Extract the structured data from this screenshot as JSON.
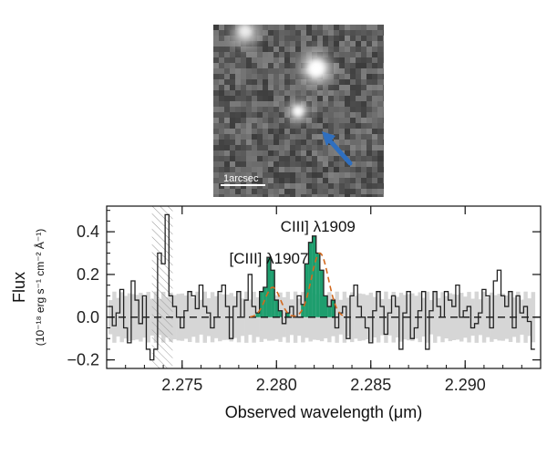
{
  "image_panel": {
    "scale_bar_label": "1arcsec",
    "arrow_color": "#2f6fbf"
  },
  "chart_data": {
    "type": "line",
    "title": "",
    "xlabel": "Observed wavelength (μm)",
    "ylabel": "Flux",
    "ylabel_units": "(10⁻¹⁸ erg s⁻¹ cm⁻² Å⁻¹)",
    "xlim": [
      2.271,
      2.294
    ],
    "ylim": [
      -0.24,
      0.52
    ],
    "x_ticks": [
      "2.275",
      "2.280",
      "2.285",
      "2.290"
    ],
    "x_tick_values": [
      2.275,
      2.28,
      2.285,
      2.29
    ],
    "y_ticks": [
      "−0.2",
      "0.0",
      "0.2",
      "0.4"
    ],
    "y_tick_values": [
      -0.2,
      0.0,
      0.2,
      0.4
    ],
    "zero_line": "dashed",
    "noise_band_sigma": 0.1,
    "masked_region": [
      2.2734,
      2.2745
    ],
    "annotations": [
      {
        "text": "[CIII] λ1907",
        "x": 2.2796,
        "y": 0.25
      },
      {
        "text": "CIII] λ1909",
        "x": 2.2822,
        "y": 0.4
      }
    ],
    "series": [
      {
        "name": "spectrum",
        "style": "step",
        "color": "#222222",
        "fill_color": "#1e9e6e",
        "x": [
          2.2712,
          2.2714,
          2.2716,
          2.2718,
          2.272,
          2.2722,
          2.2724,
          2.2726,
          2.2728,
          2.273,
          2.2732,
          2.2734,
          2.2736,
          2.2738,
          2.274,
          2.2742,
          2.2744,
          2.2746,
          2.2748,
          2.275,
          2.2752,
          2.2754,
          2.2756,
          2.2758,
          2.276,
          2.2762,
          2.2764,
          2.2766,
          2.2768,
          2.277,
          2.2772,
          2.2774,
          2.2776,
          2.2778,
          2.278,
          2.2782,
          2.2784,
          2.2786,
          2.2788,
          2.279,
          2.2792,
          2.2794,
          2.2796,
          2.2798,
          2.28,
          2.2802,
          2.2804,
          2.2806,
          2.2808,
          2.281,
          2.2812,
          2.2814,
          2.2816,
          2.2818,
          2.282,
          2.2822,
          2.2824,
          2.2826,
          2.2828,
          2.283,
          2.2832,
          2.2834,
          2.2836,
          2.2838,
          2.284,
          2.2842,
          2.2844,
          2.2846,
          2.2848,
          2.285,
          2.2852,
          2.2854,
          2.2856,
          2.2858,
          2.286,
          2.2862,
          2.2864,
          2.2866,
          2.2868,
          2.287,
          2.2872,
          2.2874,
          2.2876,
          2.2878,
          2.288,
          2.2882,
          2.2884,
          2.2886,
          2.2888,
          2.289,
          2.2892,
          2.2894,
          2.2896,
          2.2898,
          2.29,
          2.2902,
          2.2904,
          2.2906,
          2.2908,
          2.291,
          2.2912,
          2.2914,
          2.2916,
          2.2918,
          2.292,
          2.2922,
          2.2924,
          2.2926,
          2.2928,
          2.293,
          2.2932,
          2.2934,
          2.2936
        ],
        "y": [
          0.05,
          -0.04,
          0.02,
          0.13,
          -0.05,
          -0.12,
          0.17,
          0.08,
          -0.03,
          0.1,
          -0.15,
          -0.2,
          -0.15,
          0.3,
          0.25,
          0.48,
          0.1,
          0.05,
          0.0,
          -0.05,
          0.03,
          0.12,
          0.1,
          0.04,
          0.15,
          0.05,
          0.02,
          -0.05,
          0.0,
          0.12,
          0.15,
          0.05,
          -0.1,
          0.05,
          0.12,
          0.0,
          0.08,
          0.2,
          0.05,
          0.02,
          0.12,
          0.14,
          0.28,
          0.22,
          0.08,
          0.03,
          -0.03,
          0.02,
          0.05,
          0.0,
          0.1,
          0.06,
          0.25,
          0.35,
          0.38,
          0.3,
          0.22,
          0.1,
          0.05,
          0.08,
          -0.05,
          0.02,
          0.05,
          -0.1,
          0.1,
          0.15,
          0.05,
          0.0,
          -0.05,
          -0.12,
          0.03,
          0.12,
          0.05,
          -0.08,
          0.02,
          0.1,
          0.05,
          -0.15,
          0.02,
          0.12,
          -0.1,
          -0.05,
          0.03,
          0.12,
          -0.15,
          0.03,
          0.12,
          0.05,
          0.0,
          0.12,
          0.08,
          0.05,
          0.15,
          0.0,
          0.03,
          0.05,
          -0.05,
          -0.03,
          0.02,
          0.13,
          0.1,
          -0.05,
          0.17,
          0.22,
          0.1,
          0.05,
          0.12,
          -0.05,
          0.1,
          0.02,
          0.05,
          -0.02,
          -0.15
        ]
      },
      {
        "name": "fit",
        "style": "dashed",
        "color": "#d2691e",
        "components": [
          {
            "center": 2.2798,
            "amplitude": 0.14,
            "sigma": 0.0004
          },
          {
            "center": 2.2823,
            "amplitude": 0.3,
            "sigma": 0.00045
          }
        ]
      }
    ]
  }
}
